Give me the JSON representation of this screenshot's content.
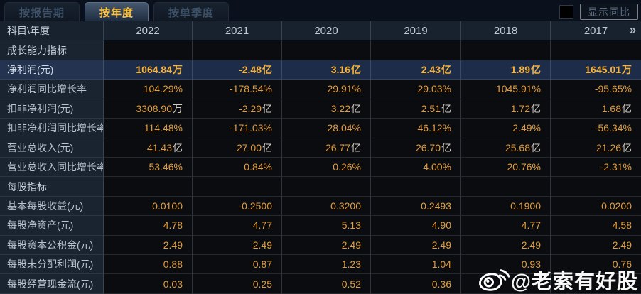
{
  "tabs": [
    {
      "label": "按报告期",
      "active": false
    },
    {
      "label": "按年度",
      "active": true
    },
    {
      "label": "按单季度",
      "active": false
    }
  ],
  "controls": {
    "show_yoy_label": "显示同比",
    "yoy_checked": false
  },
  "table": {
    "corner_label": "科目\\年度",
    "years": [
      "2022",
      "2021",
      "2020",
      "2019",
      "2018",
      "2017"
    ],
    "more_icon": "»",
    "rows": [
      {
        "type": "section",
        "label": "成长能力指标",
        "cells": [
          [
            "",
            ""
          ],
          [
            "",
            ""
          ],
          [
            "",
            ""
          ],
          [
            "",
            ""
          ],
          [
            "",
            ""
          ],
          [
            "",
            ""
          ]
        ]
      },
      {
        "type": "data",
        "highlight": true,
        "label": "净利润(元)",
        "cells": [
          [
            "1064.84",
            "万"
          ],
          [
            "-2.48",
            "亿"
          ],
          [
            "3.16",
            "亿"
          ],
          [
            "2.43",
            "亿"
          ],
          [
            "1.89",
            "亿"
          ],
          [
            "1645.01",
            "万"
          ]
        ]
      },
      {
        "type": "data",
        "label": "净利润同比增长率",
        "cells": [
          [
            "104.29%",
            ""
          ],
          [
            "-178.54%",
            ""
          ],
          [
            "29.91%",
            ""
          ],
          [
            "29.03%",
            ""
          ],
          [
            "1045.91%",
            ""
          ],
          [
            "-95.65%",
            ""
          ]
        ]
      },
      {
        "type": "data",
        "label": "扣非净利润(元)",
        "cells": [
          [
            "3308.90",
            "万"
          ],
          [
            "-2.29",
            "亿"
          ],
          [
            "3.22",
            "亿"
          ],
          [
            "2.51",
            "亿"
          ],
          [
            "1.72",
            "亿"
          ],
          [
            "1.68",
            "亿"
          ]
        ]
      },
      {
        "type": "data",
        "label": "扣非净利润同比增长率",
        "cells": [
          [
            "114.48%",
            ""
          ],
          [
            "-171.03%",
            ""
          ],
          [
            "28.04%",
            ""
          ],
          [
            "46.12%",
            ""
          ],
          [
            "2.49%",
            ""
          ],
          [
            "-56.34%",
            ""
          ]
        ]
      },
      {
        "type": "data",
        "label": "营业总收入(元)",
        "cells": [
          [
            "41.43",
            "亿"
          ],
          [
            "27.00",
            "亿"
          ],
          [
            "26.77",
            "亿"
          ],
          [
            "26.70",
            "亿"
          ],
          [
            "25.68",
            "亿"
          ],
          [
            "21.26",
            "亿"
          ]
        ]
      },
      {
        "type": "data",
        "label": "营业总收入同比增长率",
        "cells": [
          [
            "53.46%",
            ""
          ],
          [
            "0.84%",
            ""
          ],
          [
            "0.26%",
            ""
          ],
          [
            "4.00%",
            ""
          ],
          [
            "20.76%",
            ""
          ],
          [
            "-2.31%",
            ""
          ]
        ]
      },
      {
        "type": "section",
        "label": "每股指标",
        "cells": [
          [
            "",
            ""
          ],
          [
            "",
            ""
          ],
          [
            "",
            ""
          ],
          [
            "",
            ""
          ],
          [
            "",
            ""
          ],
          [
            "",
            ""
          ]
        ]
      },
      {
        "type": "data",
        "label": "基本每股收益(元)",
        "cells": [
          [
            "0.0100",
            ""
          ],
          [
            "-0.2500",
            ""
          ],
          [
            "0.3200",
            ""
          ],
          [
            "0.2493",
            ""
          ],
          [
            "0.1900",
            ""
          ],
          [
            "0.0200",
            ""
          ]
        ]
      },
      {
        "type": "data",
        "label": "每股净资产(元)",
        "cells": [
          [
            "4.78",
            ""
          ],
          [
            "4.77",
            ""
          ],
          [
            "5.13",
            ""
          ],
          [
            "4.90",
            ""
          ],
          [
            "4.77",
            ""
          ],
          [
            "4.58",
            ""
          ]
        ]
      },
      {
        "type": "data",
        "label": "每股资本公积金(元)",
        "cells": [
          [
            "2.49",
            ""
          ],
          [
            "2.49",
            ""
          ],
          [
            "2.49",
            ""
          ],
          [
            "2.49",
            ""
          ],
          [
            "2.49",
            ""
          ],
          [
            "2.49",
            ""
          ]
        ]
      },
      {
        "type": "data",
        "label": "每股未分配利润(元)",
        "cells": [
          [
            "0.88",
            ""
          ],
          [
            "0.87",
            ""
          ],
          [
            "1.23",
            ""
          ],
          [
            "1.04",
            ""
          ],
          [
            "0.93",
            ""
          ],
          [
            "0.76",
            ""
          ]
        ]
      },
      {
        "type": "data",
        "label": "每股经营现金流(元)",
        "cells": [
          [
            "0.03",
            ""
          ],
          [
            "0.25",
            ""
          ],
          [
            "0.52",
            ""
          ],
          [
            "0.36",
            ""
          ],
          [
            "",
            ""
          ],
          [
            "",
            ""
          ]
        ]
      }
    ]
  },
  "watermark": {
    "text": "@老索有好股"
  },
  "colors": {
    "background": "#0a111c",
    "label_cell_bg": "#1a2431",
    "value_cell_bg": "#0a0c0f",
    "highlight_row_bg": "#1d2c48",
    "value_orange": "#e29d3e",
    "highlight_orange": "#f7b23a",
    "tab_active_text": "#ffc53d",
    "label_text": "#b7c4d0"
  }
}
